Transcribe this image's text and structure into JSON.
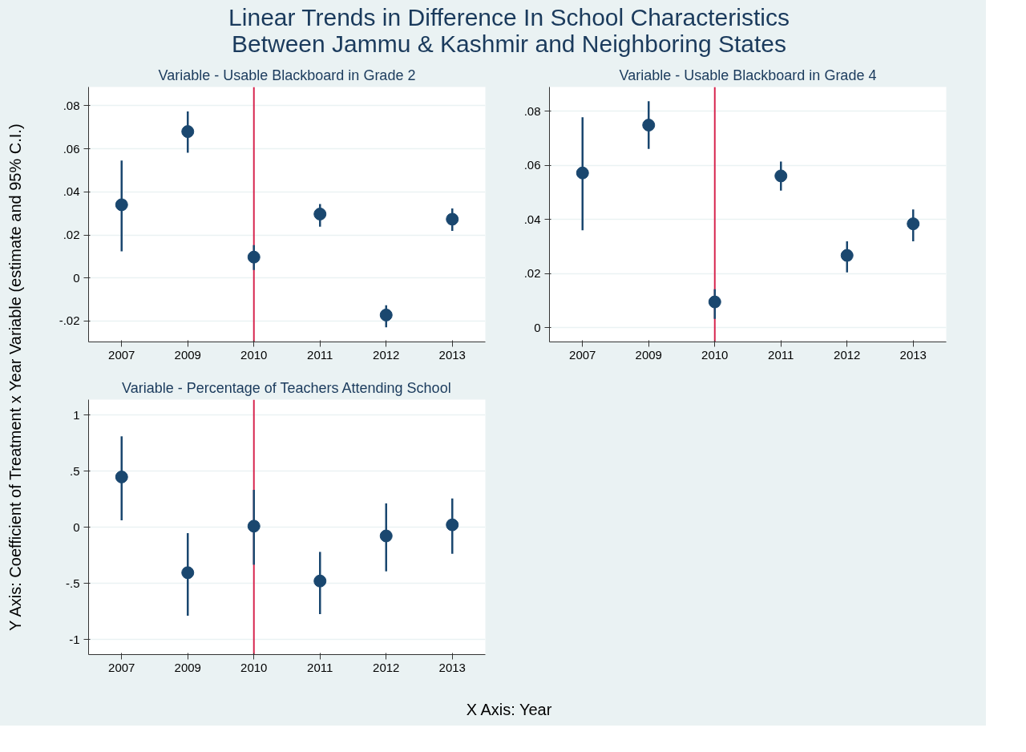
{
  "chart_data": [
    {
      "type": "scatter",
      "title": "Linear Trends in Difference In School Characteristics\nBetween Jammu & Kashmir and Neighboring States",
      "subtitle": "Variable - Usable Blackboard in Grade 2",
      "ylabel": "Y Axis: Coefficient of Treatment x Year Variable (estimate and 95% C.I.)",
      "categories": [
        "2007",
        "2009",
        "2010",
        "2011",
        "2012",
        "2013"
      ],
      "series": [
        {
          "color": "#1a476f",
          "values": [
            0.034,
            0.068,
            0.0097,
            0.0297,
            -0.0172,
            0.0273
          ],
          "errors": [
            [
              0.0124,
              0.0545
            ],
            [
              0.0582,
              0.0773
            ],
            [
              0.0037,
              0.0153
            ],
            [
              0.0238,
              0.0343
            ],
            [
              -0.0229,
              -0.0127
            ],
            [
              0.0219,
              0.0323
            ]
          ]
        }
      ],
      "ylim": [
        -0.0297,
        0.0887
      ],
      "yticks": [
        {
          "value": -0.02,
          "label": "-.02"
        },
        {
          "value": 0,
          "label": "0"
        },
        {
          "value": 0.02,
          "label": ".02"
        },
        {
          "value": 0.04,
          "label": ".04"
        },
        {
          "value": 0.06,
          "label": ".06"
        },
        {
          "value": 0.08,
          "label": ".08"
        }
      ],
      "ref_lines": [
        {
          "axis": "x",
          "value": "2010",
          "color": "#d7264f"
        }
      ],
      "grid": "y",
      "marker": "circle"
    },
    {
      "type": "scatter",
      "subtitle": "Variable - Usable Blackboard in Grade 4",
      "categories": [
        "2007",
        "2009",
        "2010",
        "2011",
        "2012",
        "2013"
      ],
      "series": [
        {
          "color": "#1a476f",
          "values": [
            0.0572,
            0.0749,
            0.0095,
            0.0561,
            0.0267,
            0.0384
          ],
          "errors": [
            [
              0.036,
              0.0778
            ],
            [
              0.0661,
              0.0837
            ],
            [
              0.0032,
              0.0142
            ],
            [
              0.0507,
              0.0614
            ],
            [
              0.0204,
              0.0319
            ],
            [
              0.0319,
              0.0437
            ]
          ]
        }
      ],
      "ylim": [
        -0.0053,
        0.089
      ],
      "yticks": [
        {
          "value": 0,
          "label": "0"
        },
        {
          "value": 0.02,
          "label": ".02"
        },
        {
          "value": 0.04,
          "label": ".04"
        },
        {
          "value": 0.06,
          "label": ".06"
        },
        {
          "value": 0.08,
          "label": ".08"
        }
      ],
      "ref_lines": [
        {
          "axis": "x",
          "value": "2010",
          "color": "#d7264f"
        }
      ],
      "grid": "y",
      "marker": "circle"
    },
    {
      "type": "scatter",
      "subtitle": "Variable - Percentage of Teachers Attending School",
      "xlabel": "X Axis: Year",
      "categories": [
        "2007",
        "2009",
        "2010",
        "2011",
        "2012",
        "2013"
      ],
      "series": [
        {
          "color": "#1a476f",
          "values": [
            0.448,
            -0.404,
            0.01,
            -0.478,
            -0.077,
            0.022
          ],
          "errors": [
            [
              0.062,
              0.81
            ],
            [
              -0.787,
              -0.052
            ],
            [
              -0.333,
              0.333
            ],
            [
              -0.772,
              -0.219
            ],
            [
              -0.392,
              0.213
            ],
            [
              -0.235,
              0.256
            ]
          ]
        }
      ],
      "ylim": [
        -1.133,
        1.136
      ],
      "yticks": [
        {
          "value": -1,
          "label": "-1"
        },
        {
          "value": -0.5,
          "label": "-.5"
        },
        {
          "value": 0,
          "label": "0"
        },
        {
          "value": 0.5,
          "label": ".5"
        },
        {
          "value": 1,
          "label": "1"
        }
      ],
      "ref_lines": [
        {
          "axis": "x",
          "value": "2010",
          "color": "#d7264f"
        }
      ],
      "grid": "y",
      "marker": "circle"
    }
  ]
}
